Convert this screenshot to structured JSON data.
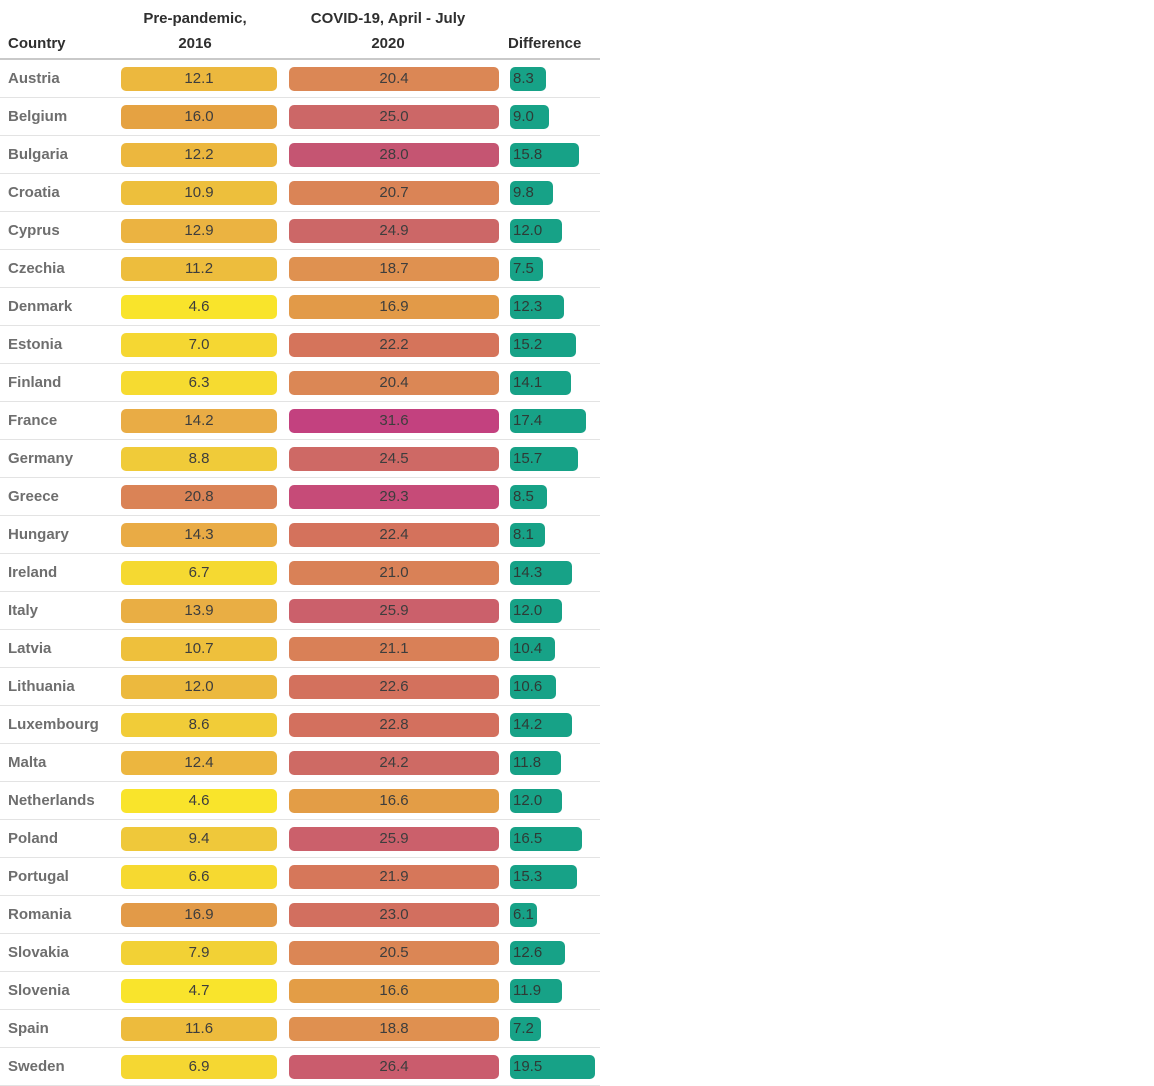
{
  "header": {
    "country": "Country",
    "pre_line1": "Pre-pandemic,",
    "pre_line2": "2016",
    "covid_line1": "COVID-19, April - July",
    "covid_line2": "2020",
    "difference": "Difference"
  },
  "chart_data": {
    "type": "table",
    "title": "",
    "categories": [
      "Austria",
      "Belgium",
      "Bulgaria",
      "Croatia",
      "Cyprus",
      "Czechia",
      "Denmark",
      "Estonia",
      "Finland",
      "France",
      "Germany",
      "Greece",
      "Hungary",
      "Ireland",
      "Italy",
      "Latvia",
      "Lithuania",
      "Luxembourg",
      "Malta",
      "Netherlands",
      "Poland",
      "Portugal",
      "Romania",
      "Slovakia",
      "Slovenia",
      "Spain",
      "Sweden"
    ],
    "series": [
      {
        "name": "Pre-pandemic, 2016",
        "values": [
          12.1,
          16.0,
          12.2,
          10.9,
          12.9,
          11.2,
          4.6,
          7.0,
          6.3,
          14.2,
          8.8,
          20.8,
          14.3,
          6.7,
          13.9,
          10.7,
          12.0,
          8.6,
          12.4,
          4.6,
          9.4,
          6.6,
          16.9,
          7.9,
          4.7,
          11.6,
          6.9
        ]
      },
      {
        "name": "COVID-19, April - July 2020",
        "values": [
          20.4,
          25.0,
          28.0,
          20.7,
          24.9,
          18.7,
          16.9,
          22.2,
          20.4,
          31.6,
          24.5,
          29.3,
          22.4,
          21.0,
          25.9,
          21.1,
          22.6,
          22.8,
          24.2,
          16.6,
          25.9,
          21.9,
          23.0,
          20.5,
          16.6,
          18.8,
          26.4
        ]
      },
      {
        "name": "Difference",
        "values": [
          8.3,
          9.0,
          15.8,
          9.8,
          12.0,
          7.5,
          12.3,
          15.2,
          14.1,
          17.4,
          15.7,
          8.5,
          8.1,
          14.3,
          12.0,
          10.4,
          10.6,
          14.2,
          11.8,
          12.0,
          16.5,
          15.3,
          6.1,
          12.6,
          11.9,
          7.2,
          19.5
        ]
      }
    ],
    "value_color_scale_stops": [
      [
        4.5,
        "#F9E52B"
      ],
      [
        6.5,
        "#F6DA30"
      ],
      [
        8.8,
        "#F0CB39"
      ],
      [
        12.1,
        "#ECB83E"
      ],
      [
        14.2,
        "#E9AC45"
      ],
      [
        16.0,
        "#E5A242"
      ],
      [
        16.9,
        "#E29A48"
      ],
      [
        18.7,
        "#DF9150"
      ],
      [
        20.5,
        "#DB8655"
      ],
      [
        22.4,
        "#D4725C"
      ],
      [
        25.0,
        "#CC6767"
      ],
      [
        26.4,
        "#CA5C6D"
      ],
      [
        28.0,
        "#C55572"
      ],
      [
        29.3,
        "#C64B78"
      ],
      [
        31.6,
        "#C3417F"
      ]
    ],
    "difference_bar_color": "#17A287",
    "legend_position": "none",
    "grid": "row-dividers-only",
    "diff_axis_max": 20
  },
  "colors": {
    "background": "#ffffff",
    "header_text": "#2f2f2f",
    "country_text": "#6e6e6e",
    "value_text": "#3d3d3d",
    "header_divider": "#c9c9c9",
    "row_divider": "#e3e3e3"
  }
}
